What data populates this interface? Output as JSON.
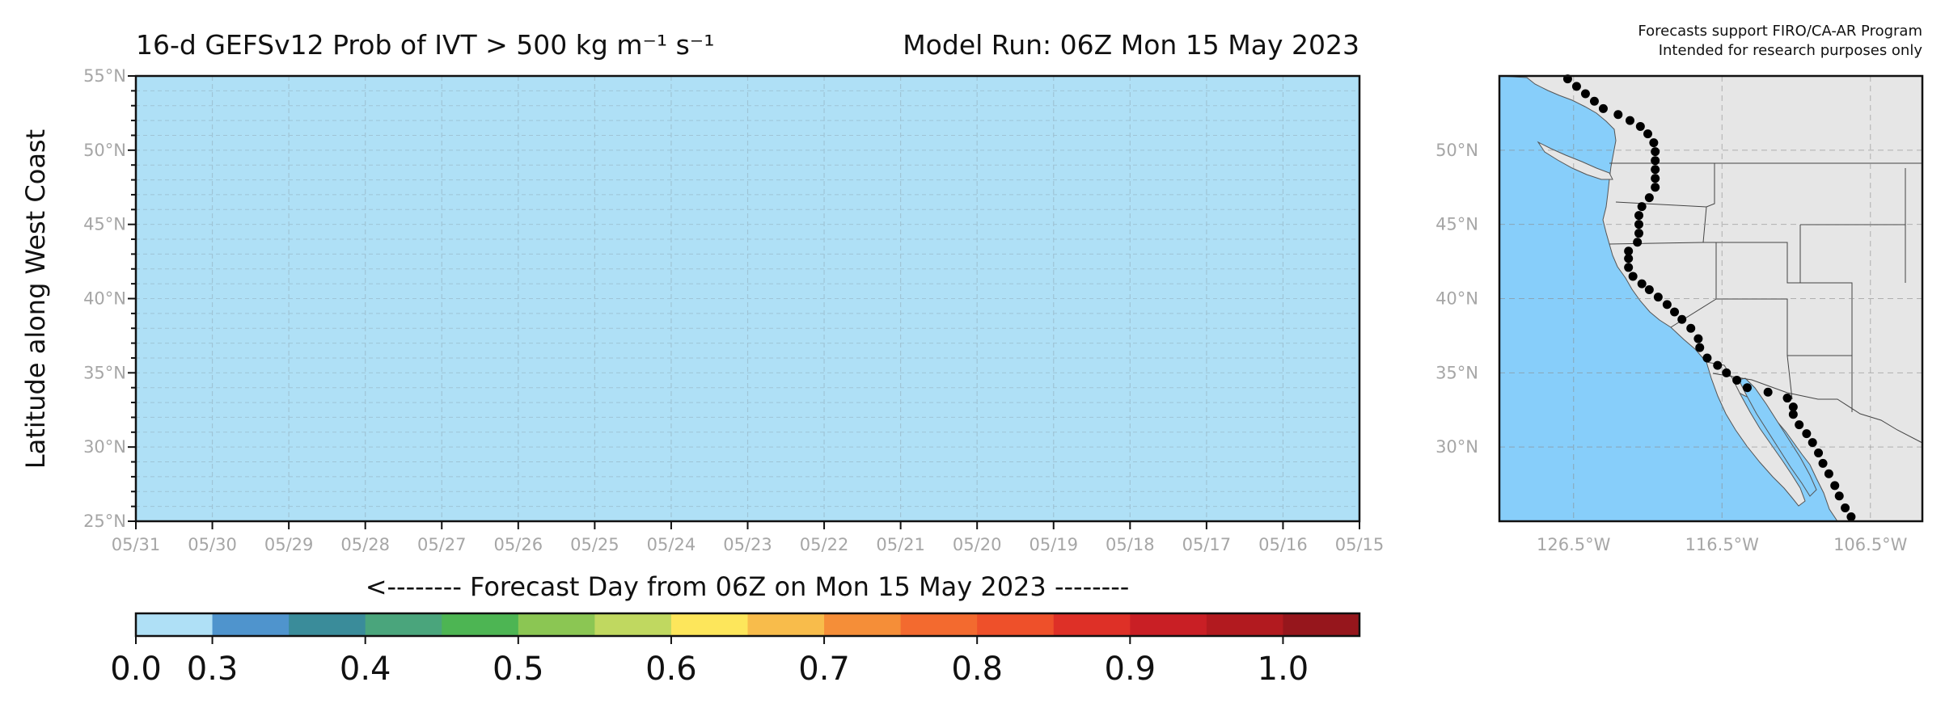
{
  "chart_data": [
    {
      "type": "heatmap",
      "title": "16-d GEFSv12 Prob of IVT > 500 kg m⁻¹ s⁻¹",
      "title_right": "Model Run: 06Z Mon 15 May 2023",
      "xlabel": "<-------- Forecast Day from 06Z on Mon 15 May 2023 --------",
      "ylabel": "Latitude along West Coast",
      "x_tick_labels": [
        "05/31",
        "05/30",
        "05/29",
        "05/28",
        "05/27",
        "05/26",
        "05/25",
        "05/24",
        "05/23",
        "05/22",
        "05/21",
        "05/20",
        "05/19",
        "05/18",
        "05/17",
        "05/16",
        "05/15"
      ],
      "y_tick_labels": [
        "55°N",
        "50°N",
        "45°N",
        "40°N",
        "35°N",
        "30°N",
        "25°N"
      ],
      "y_ticks": [
        55,
        50,
        45,
        40,
        35,
        30,
        25
      ],
      "ylim": [
        25,
        55
      ],
      "grid": true,
      "values_description_value": 0.0,
      "fill_color": "#afe0f6",
      "colorbar": {
        "boundaries": [
          0.0,
          0.3,
          0.35,
          0.4,
          0.45,
          0.5,
          0.55,
          0.6,
          0.65,
          0.7,
          0.75,
          0.8,
          0.85,
          0.9,
          0.95,
          1.0
        ],
        "band_count": 16,
        "colors": [
          "#afe0f6",
          "#4f94cd",
          "#3a8c9a",
          "#4aa57c",
          "#4db553",
          "#8bc653",
          "#c0d860",
          "#fde65b",
          "#f8bc4b",
          "#f58e38",
          "#f36a2f",
          "#ee502a",
          "#de3027",
          "#c91f25",
          "#b21a1f",
          "#96161c"
        ],
        "tick_labels": [
          "0.0",
          "0.3",
          "0.4",
          "0.5",
          "0.6",
          "0.7",
          "0.8",
          "0.9",
          "1.0"
        ],
        "tick_values": [
          0.0,
          0.3,
          0.4,
          0.5,
          0.6,
          0.7,
          0.8,
          0.9,
          1.0
        ]
      }
    },
    {
      "type": "map",
      "note_line1": "Forecasts support FIRO/CA-AR Program",
      "note_line2": "Intended for research purposes only",
      "y_tick_labels": [
        "50°N",
        "45°N",
        "40°N",
        "35°N",
        "30°N"
      ],
      "y_ticks": [
        50,
        45,
        40,
        35,
        30
      ],
      "x_tick_labels": [
        "126.5°W",
        "116.5°W",
        "106.5°W"
      ],
      "x_ticks": [
        -126.5,
        -116.5,
        -106.5
      ],
      "xlim": [
        -131.5,
        -103.0
      ],
      "ylim": [
        25,
        55
      ],
      "ocean_color": "#87cefa",
      "land_color": "#e6e6e6",
      "points": [
        [
          -126.9,
          54.8
        ],
        [
          -126.3,
          54.3
        ],
        [
          -125.7,
          53.8
        ],
        [
          -125.1,
          53.3
        ],
        [
          -124.5,
          52.8
        ],
        [
          -123.5,
          52.4
        ],
        [
          -122.7,
          52.0
        ],
        [
          -122.0,
          51.6
        ],
        [
          -121.5,
          51.1
        ],
        [
          -121.1,
          50.5
        ],
        [
          -121.0,
          49.9
        ],
        [
          -121.0,
          49.3
        ],
        [
          -121.0,
          48.7
        ],
        [
          -121.0,
          48.1
        ],
        [
          -121.0,
          47.5
        ],
        [
          -121.4,
          46.8
        ],
        [
          -121.9,
          46.2
        ],
        [
          -122.1,
          45.6
        ],
        [
          -122.1,
          45.0
        ],
        [
          -122.1,
          44.4
        ],
        [
          -122.2,
          43.8
        ],
        [
          -122.8,
          43.2
        ],
        [
          -122.8,
          42.7
        ],
        [
          -122.8,
          42.1
        ],
        [
          -122.5,
          41.5
        ],
        [
          -121.9,
          41.0
        ],
        [
          -121.4,
          40.6
        ],
        [
          -120.8,
          40.1
        ],
        [
          -120.2,
          39.6
        ],
        [
          -119.7,
          39.1
        ],
        [
          -119.2,
          38.6
        ],
        [
          -118.6,
          38.0
        ],
        [
          -118.1,
          37.3
        ],
        [
          -118.0,
          36.7
        ],
        [
          -117.5,
          36.0
        ],
        [
          -116.8,
          35.5
        ],
        [
          -116.2,
          35.0
        ],
        [
          -115.5,
          34.5
        ],
        [
          -114.8,
          34.0
        ],
        [
          -113.4,
          33.7
        ],
        [
          -112.1,
          33.3
        ],
        [
          -111.7,
          32.7
        ],
        [
          -111.7,
          32.2
        ],
        [
          -111.3,
          31.5
        ],
        [
          -110.8,
          30.9
        ],
        [
          -110.4,
          30.3
        ],
        [
          -110.0,
          29.6
        ],
        [
          -109.7,
          28.9
        ],
        [
          -109.3,
          28.2
        ],
        [
          -108.9,
          27.4
        ],
        [
          -108.6,
          26.7
        ],
        [
          -108.2,
          25.9
        ],
        [
          -107.8,
          25.3
        ]
      ]
    }
  ]
}
